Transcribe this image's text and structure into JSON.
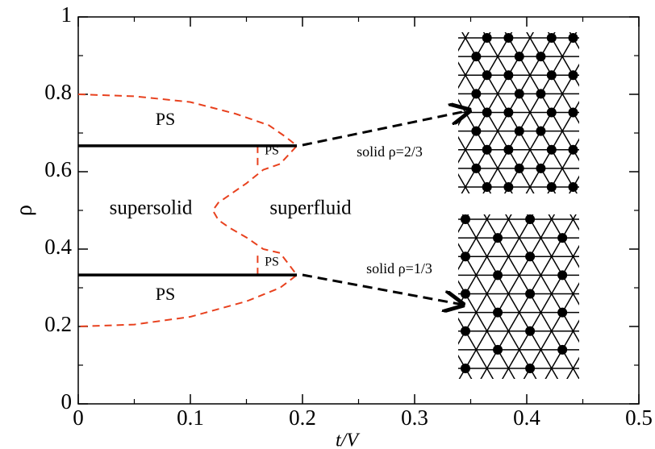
{
  "chart_data": {
    "type": "line",
    "xlabel": "t/V",
    "ylabel": "ρ",
    "xlim": [
      0,
      0.5
    ],
    "ylim": [
      0,
      1
    ],
    "xticks": [
      0,
      0.1,
      0.2,
      0.3,
      0.4,
      0.5
    ],
    "yticks": [
      0,
      0.2,
      0.4,
      0.6,
      0.8,
      1
    ],
    "xminorticks": [
      0.05,
      0.15,
      0.25,
      0.35,
      0.45
    ],
    "yminorticks": [
      0.1,
      0.3,
      0.5,
      0.7,
      0.9
    ],
    "series": [
      {
        "color": "#e8411e",
        "dashed": true,
        "x": [
          0,
          0.05,
          0.1,
          0.14,
          0.17,
          0.185,
          0.195,
          0.18,
          0.165,
          0.15,
          0.135,
          0.125,
          0.12,
          0.125,
          0.135,
          0.15,
          0.165,
          0.18,
          0.195,
          0.18,
          0.15,
          0.1,
          0.05,
          0
        ],
        "values": [
          0.8,
          0.795,
          0.78,
          0.75,
          0.72,
          0.69,
          0.667,
          0.62,
          0.605,
          0.57,
          0.54,
          0.52,
          0.5,
          0.475,
          0.455,
          0.43,
          0.4,
          0.39,
          0.333,
          0.3,
          0.265,
          0.225,
          0.205,
          0.2
        ]
      },
      {
        "color": "#e8411e",
        "dashed": true,
        "x": [
          0.16,
          0.16
        ],
        "values": [
          0.667,
          0.605
        ]
      },
      {
        "color": "#e8411e",
        "dashed": true,
        "x": [
          0.16,
          0.16
        ],
        "values": [
          0.333,
          0.395
        ]
      },
      {
        "color": "#000000",
        "dashed": false,
        "x": [
          0,
          0.195
        ],
        "values": [
          0.667,
          0.667
        ]
      },
      {
        "color": "#000000",
        "dashed": false,
        "x": [
          0,
          0.195
        ],
        "values": [
          0.333,
          0.333
        ]
      }
    ],
    "annotations": [
      "PS",
      "PS",
      "supersolid",
      "superfluid",
      "PS",
      "PS",
      "solid ρ=2/3",
      "solid ρ=1/3"
    ]
  }
}
